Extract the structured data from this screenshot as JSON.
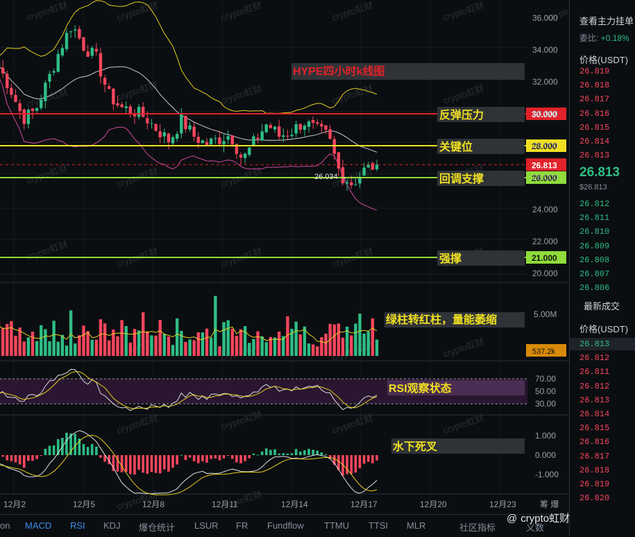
{
  "chart_data": {
    "type": "candlestick",
    "title": "HYPE四小时k线图",
    "price_axis": {
      "ticks": [
        "36.000",
        "34.000",
        "32.000",
        "30.000",
        "28.000",
        "26.000",
        "24.000",
        "22.000",
        "20.000"
      ],
      "ylim": [
        19.5,
        36.5
      ]
    },
    "date_axis": {
      "ticks": [
        "12月2",
        "12月5",
        "12月8",
        "12月11",
        "12月14",
        "12月17",
        "12月20",
        "12月23"
      ],
      "extra": "筹 爆"
    },
    "price_path": [
      33.0,
      31.5,
      29.7,
      30.2,
      32.0,
      34.0,
      35.6,
      34.2,
      33.5,
      31.2,
      30.4,
      30.2,
      29.8,
      29.0,
      28.3,
      29.6,
      28.6,
      28.1,
      28.4,
      28.7,
      27.1,
      28.3,
      29.4,
      28.6,
      28.9,
      29.5,
      29.0,
      28.6,
      26.2,
      25.6,
      26.5,
      26.813
    ],
    "levels": [
      {
        "price": 30.0,
        "label": "反弹压力",
        "tag": "30.000",
        "color": "#e0222a"
      },
      {
        "price": 28.0,
        "label": "关键位",
        "tag": "28.000",
        "color": "#f0e020"
      },
      {
        "price": 26.0,
        "label": "回调支撑",
        "tag": "26.000",
        "color": "#8fdc3b"
      },
      {
        "price": 21.0,
        "label": "强撑",
        "tag": "21.000",
        "color": "#8fdc3b"
      }
    ],
    "current_price": {
      "value": 26.813,
      "tag": "26.813"
    },
    "low_marker": "26.034",
    "volume": {
      "ticks": [
        "5.00M"
      ],
      "current": "537.2k",
      "annotation": "绿柱转红柱，量能萎缩"
    },
    "rsi": {
      "ticks": [
        "70.00",
        "50.00",
        "30.00"
      ],
      "annotation": "RSI观察状态"
    },
    "macd": {
      "ticks": [
        "1.000",
        "0.000",
        "-1.000"
      ],
      "annotation": "水下死叉"
    }
  },
  "watermark": "crypto虹财",
  "sidebar": {
    "header": "查看主力挂单",
    "ratio_label": "委比:",
    "ratio_value": "+0.18%",
    "col_header": "价格(USDT)",
    "asks": [
      "26.819",
      "26.818",
      "26.817",
      "26.816",
      "26.815",
      "26.814",
      "26.813"
    ],
    "last_price": "26.813",
    "last_price_sub": "$26.813",
    "bids": [
      "26.812",
      "26.811",
      "26.810",
      "26.809",
      "26.808",
      "26.807",
      "26.806"
    ],
    "trades_header": "最新成交",
    "trades_col_header": "价格(USDT)",
    "trades": [
      {
        "p": "26.813",
        "c": "#2ebd85"
      },
      {
        "p": "26.812",
        "c": "#f6465d"
      },
      {
        "p": "26.811",
        "c": "#f6465d"
      },
      {
        "p": "26.812",
        "c": "#f6465d"
      },
      {
        "p": "26.813",
        "c": "#f6465d"
      },
      {
        "p": "26.814",
        "c": "#f6465d"
      },
      {
        "p": "26.815",
        "c": "#f6465d"
      },
      {
        "p": "26.816",
        "c": "#f6465d"
      },
      {
        "p": "26.817",
        "c": "#f6465d"
      },
      {
        "p": "26.818",
        "c": "#f6465d"
      },
      {
        "p": "26.819",
        "c": "#f6465d"
      },
      {
        "p": "26.820",
        "c": "#f6465d"
      }
    ]
  },
  "tabs": [
    "on",
    "MACD",
    "RSI",
    "KDJ",
    "爆仓统计",
    "LSUR",
    "FR",
    "Fundflow",
    "TTMU",
    "TTSI",
    "MLR",
    "社区指标",
    "义数"
  ],
  "brand": {
    "prefix": "@",
    "name": "crypto虹财"
  },
  "colors": {
    "up": "#2ebd85",
    "down": "#f6465d",
    "bg": "#0b0e11"
  }
}
